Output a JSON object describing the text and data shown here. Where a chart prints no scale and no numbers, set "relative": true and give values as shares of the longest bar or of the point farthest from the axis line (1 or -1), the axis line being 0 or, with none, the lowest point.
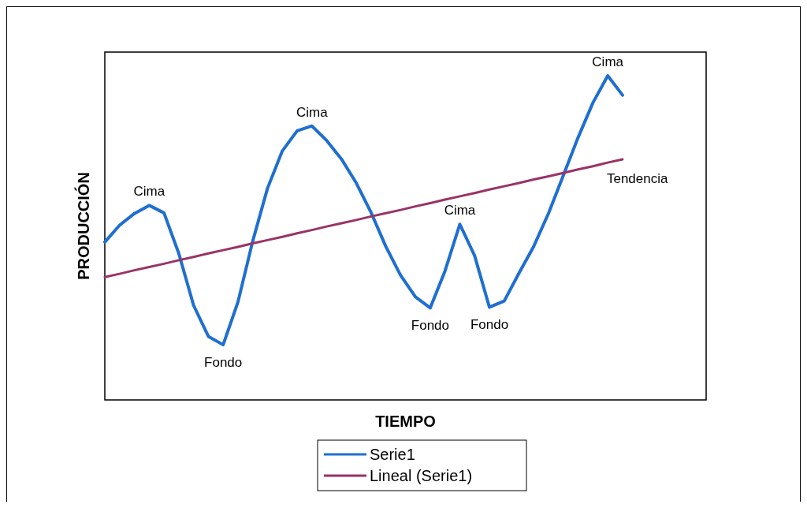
{
  "chart_data": {
    "type": "line",
    "xlabel": "TIEMPO",
    "ylabel": "PRODUCCIÓN",
    "relative": true,
    "tick_labels": false,
    "legend": "bottom",
    "marker": "none",
    "line_style": "solid",
    "categories": [
      null,
      null,
      null,
      null,
      null,
      null,
      null,
      null,
      null,
      null,
      null,
      null,
      null,
      null,
      null,
      null,
      null,
      null,
      null,
      null,
      null,
      null,
      null,
      null,
      null,
      null,
      null,
      null,
      null,
      null,
      null,
      null,
      null,
      null,
      null,
      null
    ],
    "series": [
      {
        "name": "Serie1",
        "color": "#1f6fd0",
        "values": [
          0.487,
          0.539,
          0.575,
          0.6,
          0.577,
          0.452,
          0.292,
          0.196,
          0.17,
          0.302,
          0.49,
          0.653,
          0.768,
          0.83,
          0.845,
          0.8,
          0.743,
          0.669,
          0.578,
          0.473,
          0.384,
          0.318,
          0.284,
          0.398,
          0.542,
          0.445,
          0.286,
          0.305,
          0.391,
          0.474,
          0.576,
          0.693,
          0.81,
          0.917,
          1,
          0.94
        ]
      },
      {
        "name": "Lineal (Serie1)",
        "color": "#993366",
        "values": [
          0.379,
          0.389,
          0.4,
          0.41,
          0.42,
          0.431,
          0.441,
          0.452,
          0.462,
          0.472,
          0.483,
          0.493,
          0.503,
          0.514,
          0.524,
          0.535,
          0.545,
          0.555,
          0.566,
          0.576,
          0.586,
          0.597,
          0.607,
          0.618,
          0.628,
          0.638,
          0.649,
          0.659,
          0.669,
          0.68,
          0.69,
          0.7,
          0.711,
          0.721,
          0.732,
          0.742
        ]
      }
    ],
    "annotations": [
      {
        "text": "Cima",
        "y": 0.6
      },
      {
        "text": "Fondo",
        "y": 0.17
      },
      {
        "text": "Cima",
        "y": 0.845
      },
      {
        "text": "Fondo",
        "y": 0.284
      },
      {
        "text": "Cima",
        "y": 0.542
      },
      {
        "text": "Fondo",
        "y": 0.286
      },
      {
        "text": "Cima",
        "y": 1
      },
      "Tendencia"
    ]
  }
}
